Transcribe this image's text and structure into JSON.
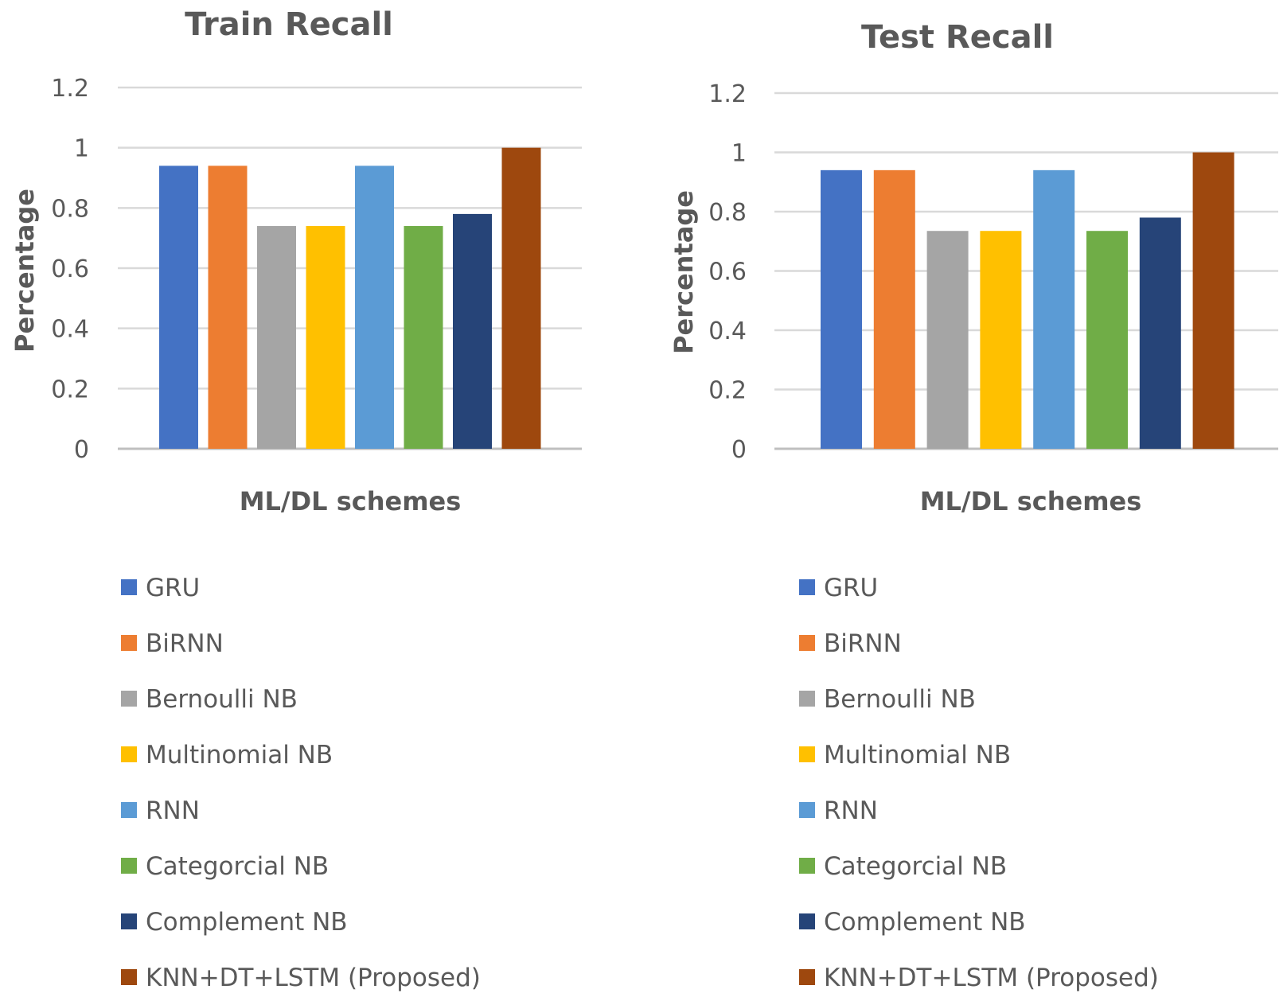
{
  "chart_data": [
    {
      "type": "bar",
      "title": "Train Recall",
      "xlabel": "ML/DL schemes",
      "ylabel": "Percentage",
      "ylim": [
        0,
        1.2
      ],
      "yticks": [
        "0",
        "0.2",
        "0.4",
        "0.6",
        "0.8",
        "1",
        "1.2"
      ],
      "ytick_values": [
        0,
        0.2,
        0.4,
        0.6,
        0.8,
        1.0,
        1.2
      ],
      "grid": true,
      "legend_position": "bottom",
      "categories": [
        "GRU",
        "BiRNN",
        "Bernoulli NB",
        "Multinomial NB",
        "RNN",
        "Categorcial NB",
        "Complement NB",
        "KNN+DT+LSTM (Proposed)"
      ],
      "values": [
        0.94,
        0.94,
        0.74,
        0.74,
        0.94,
        0.74,
        0.78,
        1.0
      ],
      "colors": [
        "#4472C4",
        "#ED7D31",
        "#A5A5A5",
        "#FFC000",
        "#5B9BD5",
        "#70AD47",
        "#264478",
        "#9E480E"
      ]
    },
    {
      "type": "bar",
      "title": "Test Recall",
      "xlabel": "ML/DL schemes",
      "ylabel": "Percentage",
      "ylim": [
        0,
        1.2
      ],
      "yticks": [
        "0",
        "0.2",
        "0.4",
        "0.6",
        "0.8",
        "1",
        "1.2"
      ],
      "ytick_values": [
        0,
        0.2,
        0.4,
        0.6,
        0.8,
        1.0,
        1.2
      ],
      "grid": true,
      "legend_position": "bottom",
      "categories": [
        "GRU",
        "BiRNN",
        "Bernoulli NB",
        "Multinomial NB",
        "RNN",
        "Categorcial NB",
        "Complement NB",
        "KNN+DT+LSTM (Proposed)"
      ],
      "values": [
        0.94,
        0.94,
        0.735,
        0.735,
        0.94,
        0.735,
        0.78,
        1.0
      ],
      "colors": [
        "#4472C4",
        "#ED7D31",
        "#A5A5A5",
        "#FFC000",
        "#5B9BD5",
        "#70AD47",
        "#264478",
        "#9E480E"
      ]
    }
  ]
}
